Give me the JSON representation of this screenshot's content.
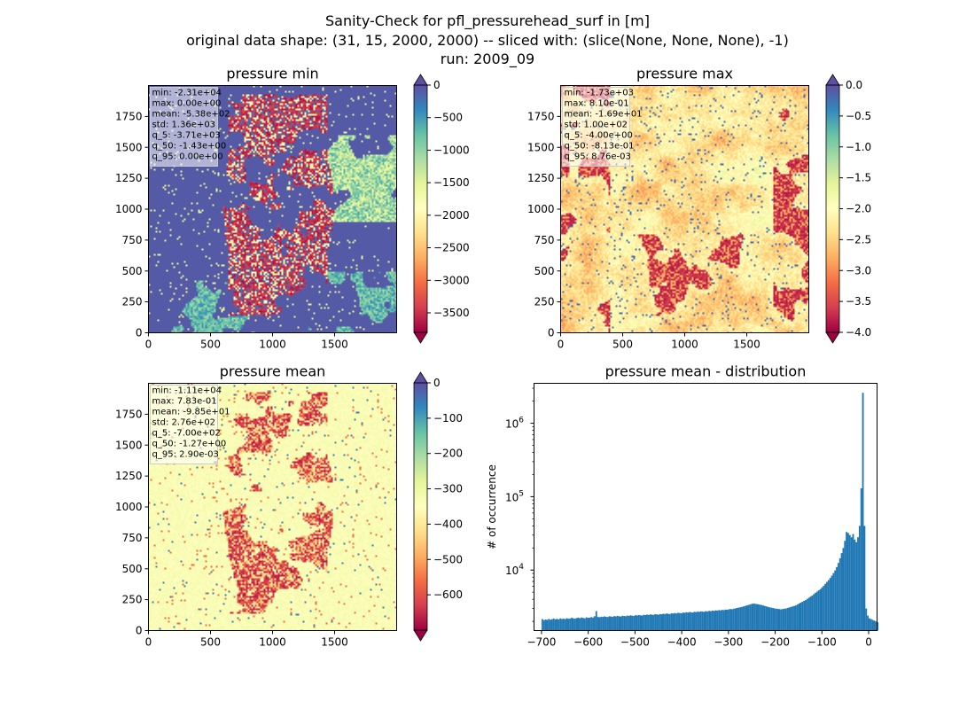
{
  "figure": {
    "title_lines": [
      "Sanity-Check for pfl_pressurehead_surf in [m]",
      "original data shape: (31, 15, 2000, 2000) -- sliced with: (slice(None, None, None), -1)",
      "run: 2009_09"
    ]
  },
  "chart_data": [
    {
      "type": "heatmap",
      "title": "pressure min",
      "x_ticks": [
        "0",
        "500",
        "1000",
        "1500"
      ],
      "y_ticks": [
        "0",
        "250",
        "500",
        "750",
        "1000",
        "1250",
        "1500",
        "1750"
      ],
      "xlim": [
        0,
        2000
      ],
      "ylim": [
        0,
        2000
      ],
      "colorbar": {
        "range": [
          -3800,
          0
        ],
        "ticks": [
          0,
          -500,
          -1000,
          -1500,
          -2000,
          -2500,
          -3000,
          -3500
        ],
        "tick_labels": [
          "0",
          "−500",
          "−1000",
          "−1500",
          "−2000",
          "−2500",
          "−3000",
          "−3500"
        ],
        "extend": "both",
        "cmap": "Spectral"
      },
      "stats": [
        "min: -2.31e+04",
        "max: 0.00e+00",
        "mean: -5.38e+02",
        "std: 1.36e+03",
        "q_5: -3.71e+03",
        "q_50: -1.43e+00",
        "q_95: 0.00e+00"
      ]
    },
    {
      "type": "heatmap",
      "title": "pressure max",
      "x_ticks": [
        "0",
        "500",
        "1000",
        "1500"
      ],
      "y_ticks": [
        "0",
        "250",
        "500",
        "750",
        "1000",
        "1250",
        "1500",
        "1750"
      ],
      "xlim": [
        0,
        2000
      ],
      "ylim": [
        0,
        2000
      ],
      "colorbar": {
        "range": [
          -4.0,
          0.0
        ],
        "ticks": [
          0.0,
          -0.5,
          -1.0,
          -1.5,
          -2.0,
          -2.5,
          -3.0,
          -3.5,
          -4.0
        ],
        "tick_labels": [
          "0.0",
          "−0.5",
          "−1.0",
          "−1.5",
          "−2.0",
          "−2.5",
          "−3.0",
          "−3.5",
          "−4.0"
        ],
        "extend": "both",
        "cmap": "Spectral"
      },
      "stats": [
        "min: -1.73e+03",
        "max: 8.10e-01",
        "mean: -1.69e+01",
        "std: 1.00e+02",
        "q_5: -4.00e+00",
        "q_50: -8.13e-01",
        "q_95: 8.76e-03"
      ]
    },
    {
      "type": "heatmap",
      "title": "pressure mean",
      "x_ticks": [
        "0",
        "500",
        "1000",
        "1500"
      ],
      "y_ticks": [
        "0",
        "250",
        "500",
        "750",
        "1000",
        "1250",
        "1500",
        "1750"
      ],
      "xlim": [
        0,
        2000
      ],
      "ylim": [
        0,
        2000
      ],
      "colorbar": {
        "range": [
          -700,
          0
        ],
        "ticks": [
          0,
          -100,
          -200,
          -300,
          -400,
          -500,
          -600
        ],
        "tick_labels": [
          "0",
          "−100",
          "−200",
          "−300",
          "−400",
          "−500",
          "−600"
        ],
        "extend": "both",
        "cmap": "Spectral"
      },
      "stats": [
        "min: -1.11e+04",
        "max: 7.83e-01",
        "mean: -9.85e+01",
        "std: 2.76e+02",
        "q_5: -7.00e+02",
        "q_50: -1.27e+00",
        "q_95: 2.90e-03"
      ]
    },
    {
      "type": "bar",
      "title": "pressure mean - distribution",
      "xlabel": "",
      "ylabel": "# of occurrence",
      "xlim": [
        -716,
        18
      ],
      "ylim": [
        1500,
        3500000
      ],
      "y_scale": "log",
      "x_ticks": [
        -700,
        -600,
        -500,
        -400,
        -300,
        -200,
        -100,
        0
      ],
      "x_tick_labels": [
        "−700",
        "−600",
        "−500",
        "−400",
        "−300",
        "−200",
        "−100",
        "0"
      ],
      "y_ticks": [
        {
          "value": 10000,
          "base": "10",
          "exp": "4"
        },
        {
          "value": 100000,
          "base": "10",
          "exp": "5"
        },
        {
          "value": 1000000,
          "base": "10",
          "exp": "6"
        }
      ],
      "bar_color": "#1f77b4",
      "bins": {
        "start": -700,
        "end": 0,
        "count": 200
      },
      "counts": [
        2150,
        2080,
        2120,
        2100,
        2160,
        2110,
        2140,
        2190,
        2130,
        2170,
        2120,
        2200,
        2160,
        2180,
        2150,
        2210,
        2170,
        2190,
        2240,
        2200,
        2180,
        2220,
        2250,
        2210,
        2260,
        2230,
        2200,
        2270,
        2240,
        2250,
        2290,
        2260,
        2350,
        2760,
        2300,
        2280,
        2320,
        2300,
        2340,
        2310,
        2290,
        2350,
        2330,
        2310,
        2360,
        2340,
        2380,
        2350,
        2330,
        2390,
        2370,
        2350,
        2400,
        2380,
        2420,
        2390,
        2370,
        2430,
        2410,
        2440,
        2420,
        2400,
        2460,
        2440,
        2480,
        2450,
        2490,
        2470,
        2450,
        2510,
        2490,
        2470,
        2520,
        2500,
        2540,
        2520,
        2560,
        2540,
        2520,
        2580,
        2560,
        2600,
        2570,
        2620,
        2600,
        2580,
        2640,
        2620,
        2660,
        2640,
        2680,
        2660,
        2640,
        2700,
        2680,
        2720,
        2700,
        2740,
        2720,
        2700,
        2760,
        2740,
        2780,
        2760,
        2800,
        2780,
        2830,
        2810,
        2850,
        2830,
        2870,
        2850,
        2900,
        2880,
        2920,
        2950,
        2930,
        2980,
        3000,
        3050,
        3080,
        3120,
        3150,
        3200,
        3250,
        3300,
        3350,
        3400,
        3450,
        3500,
        3480,
        3450,
        3420,
        3380,
        3350,
        3300,
        3250,
        3200,
        3150,
        3100,
        3080,
        3050,
        3000,
        2980,
        2960,
        2940,
        2920,
        2950,
        2980,
        3000,
        3050,
        3100,
        3150,
        3200,
        3250,
        3300,
        3400,
        3500,
        3600,
        3700,
        3800,
        3900,
        4050,
        4200,
        4350,
        4500,
        4700,
        4900,
        5100,
        5300,
        5500,
        5800,
        6100,
        6500,
        6900,
        7300,
        7800,
        8400,
        9100,
        9900,
        11000,
        12500,
        14500,
        17000,
        20000,
        25000,
        33000,
        32000,
        30000,
        28000,
        31000,
        26000,
        24000,
        28000,
        40000,
        130000,
        2600000,
        40000,
        3000,
        2400,
        2200,
        2150,
        2100,
        2050,
        2000,
        1950
      ]
    }
  ]
}
